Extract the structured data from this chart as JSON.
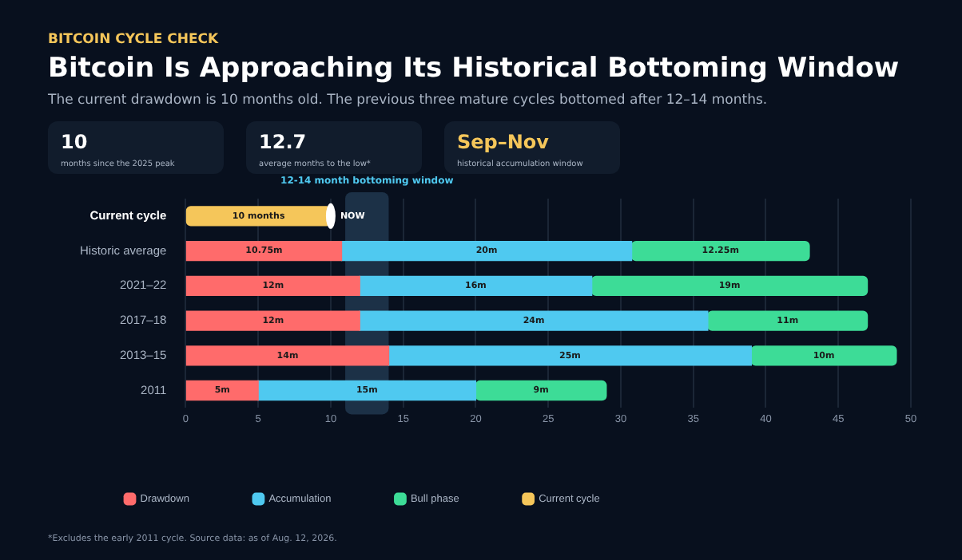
{
  "chart_data": {
    "type": "bar",
    "orientation": "horizontal",
    "stacked": true,
    "title": "Bitcoin Is Approaching Its Historical Bottoming Window",
    "subtitle": "The current drawdown is 10 months old. The previous three mature cycles bottomed after 12–14 months.",
    "annotations": [
      "BITCOIN CYCLE CHECK",
      "10",
      "months since the 2025 peak",
      "12.7",
      "average months to the low*",
      "Sep–Nov",
      "historical accumulation window",
      "*Excludes the early 2011 cycle. Source data: as of Aug. 12, 2026.",
      {
        "text": "NOW",
        "x": 10,
        "y": "Current cycle"
      }
    ],
    "categories": [
      "Current cycle",
      "Historic average",
      "2021–22",
      "2017–18",
      "2013–15",
      "2011"
    ],
    "series": [
      {
        "name": "Drawdown",
        "color": "#ff6b6b",
        "values": [
          null,
          10.75,
          12,
          12,
          14,
          5
        ],
        "value_labels": [
          null,
          "10.75m",
          "12m",
          "12m",
          "14m",
          "5m"
        ]
      },
      {
        "name": "Accumulation",
        "color": "#4fc9f0",
        "values": [
          null,
          20,
          16,
          24,
          25,
          15
        ],
        "value_labels": [
          null,
          "20m",
          "16m",
          "24m",
          "25m",
          "15m"
        ]
      },
      {
        "name": "Bull phase",
        "color": "#3ddc97",
        "values": [
          null,
          12.25,
          19,
          11,
          10,
          9
        ],
        "value_labels": [
          null,
          "12.25m",
          "19m",
          "11m",
          "10m",
          "9m"
        ]
      },
      {
        "name": "Current cycle",
        "color": "#f5c65a",
        "values": [
          10,
          null,
          null,
          null,
          null,
          null
        ],
        "value_labels": [
          "10 months",
          null,
          null,
          null,
          null,
          null
        ]
      }
    ],
    "xlim": [
      0,
      50
    ],
    "xticks": [
      0,
      5,
      10,
      15,
      20,
      25,
      30,
      35,
      40,
      45,
      50
    ],
    "grid": "x",
    "legend": "bottom",
    "bands": [
      {
        "axis": "x",
        "from": 11,
        "to": 14,
        "label": "12-14 month bottoming window",
        "color": "#1c3147"
      }
    ]
  }
}
